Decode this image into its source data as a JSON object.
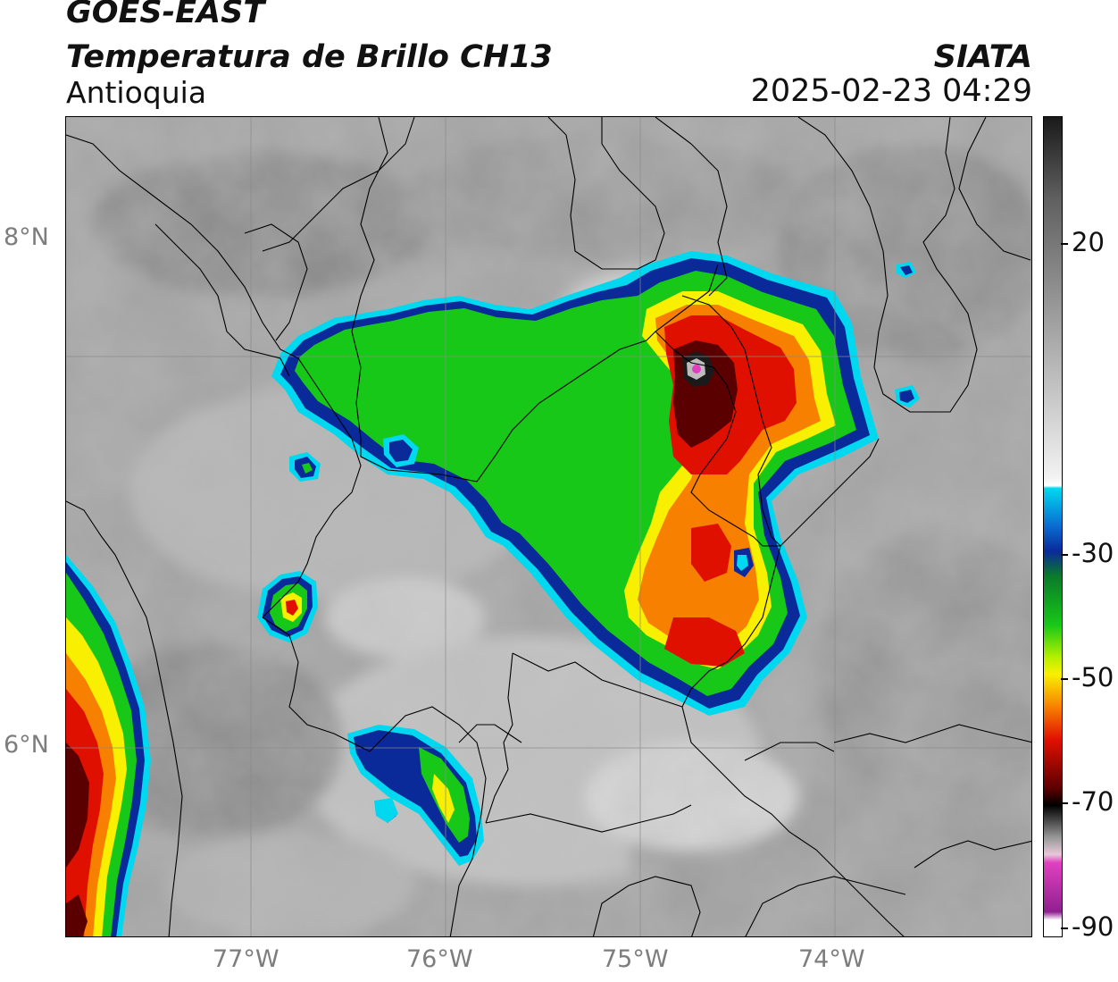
{
  "header": {
    "line1": "GOES-EAST",
    "line2": "Temperatura de Brillo CH13",
    "line3": "Antioquia",
    "agency": "SIATA",
    "datetime": "2025-02-23 04:29"
  },
  "axes": {
    "lat_labels": [
      "8°N",
      "6°N"
    ],
    "lon_labels": [
      "77°W",
      "76°W",
      "75°W",
      "74°W"
    ]
  },
  "colorbar": {
    "labels": [
      "20",
      "-30",
      "-50",
      "-70",
      "-90"
    ],
    "colors": {
      "dark": "#1a1a1a",
      "light": "#f2f2f2",
      "cyan": "#00d8f0",
      "blue": "#0a2a9a",
      "green": "#18c818",
      "yellow": "#f8f000",
      "orange": "#f88000",
      "red": "#e01000",
      "darkred": "#5a0000",
      "magenta": "#e040c0",
      "purple": "#902090"
    }
  }
}
